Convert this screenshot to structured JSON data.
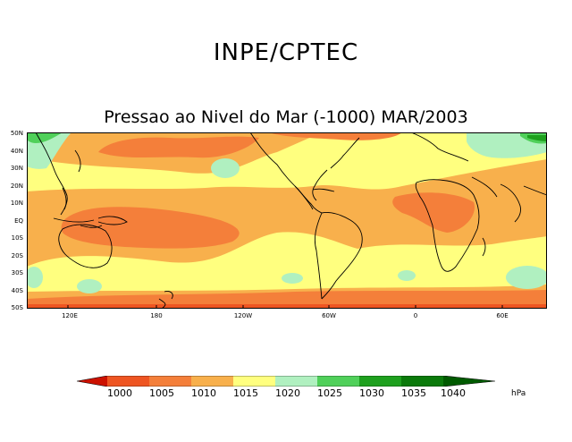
{
  "header": {
    "title": "INPE/CPTEC",
    "subtitle": "Pressao ao Nivel do Mar (-1000) MAR/2003"
  },
  "map": {
    "lat_labels": [
      "50N",
      "40N",
      "30N",
      "20N",
      "10N",
      "EQ",
      "10S",
      "20S",
      "30S",
      "40S",
      "50S"
    ],
    "lon_labels": [
      "120E",
      "180",
      "120W",
      "60W",
      "0",
      "60E"
    ],
    "contour_colors": {
      "below_1000": "#cc1100",
      "1000_1005": "#ee5522",
      "1005_1010": "#f47f3a",
      "1010_1015": "#f8b04c",
      "1015_1020": "#ffff7f",
      "1020_1025": "#b0f0c0",
      "1025_1030": "#50d05a",
      "1030_1035": "#1ea01e",
      "1035_1040": "#0b7a0b",
      "above_1040": "#005a00"
    }
  },
  "colorbar": {
    "labels": [
      "1000",
      "1005",
      "1010",
      "1015",
      "1020",
      "1025",
      "1030",
      "1035",
      "1040"
    ],
    "colors": [
      "#cc1100",
      "#ee5522",
      "#f47f3a",
      "#f8b04c",
      "#ffff7f",
      "#b0f0c0",
      "#50d05a",
      "#1ea01e",
      "#0b7a0b",
      "#005a00"
    ],
    "unit": "hPa"
  }
}
